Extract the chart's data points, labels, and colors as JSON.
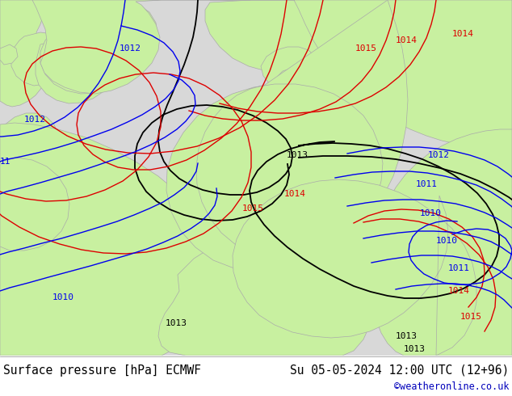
{
  "title_left": "Surface pressure [hPa] ECMWF",
  "title_right": "Su 05-05-2024 12:00 UTC (12+96)",
  "credit": "©weatheronline.co.uk",
  "sea_color": "#d8d8d8",
  "land_color": "#c8f0a0",
  "border_color": "#aaaaaa",
  "white": "#ffffff",
  "blue": "#0000ee",
  "red": "#dd0000",
  "black": "#000000",
  "title_fontsize": 10.5,
  "label_fontsize": 8,
  "credit_fontsize": 8.5
}
